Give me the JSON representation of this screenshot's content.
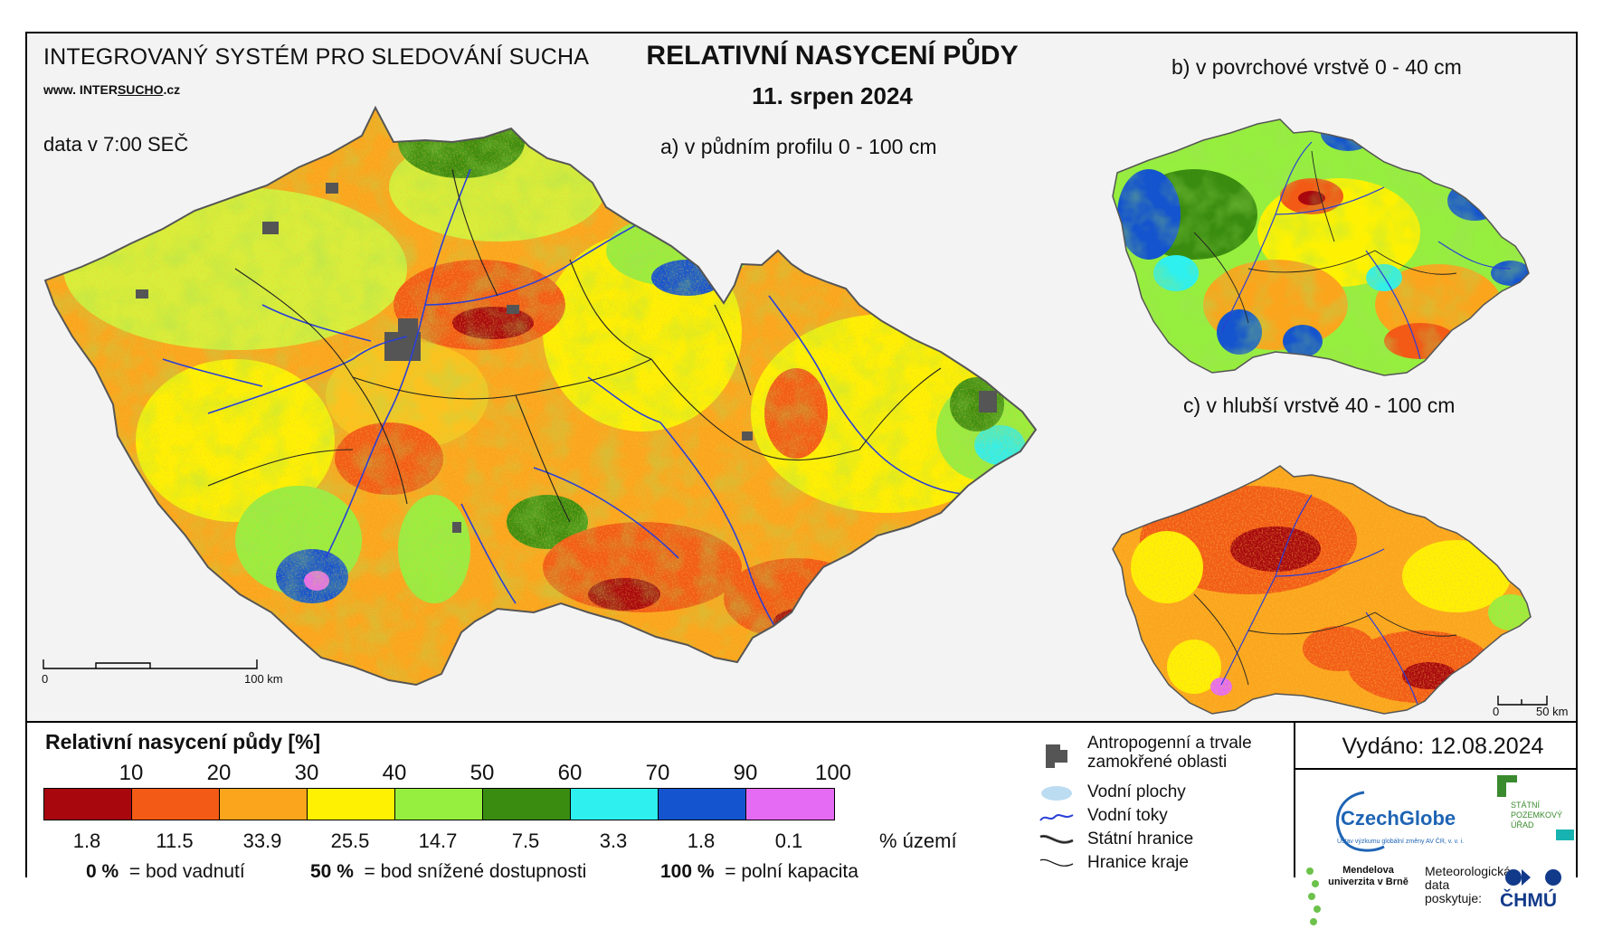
{
  "header": {
    "system_title": "INTEGROVANÝ SYSTÉM PRO SLEDOVÁNÍ SUCHA",
    "website_prefix": "www. INTER",
    "website_underlined": "SUCHO",
    "website_suffix": ".cz",
    "data_time": "data v 7:00 SEČ",
    "title": "RELATIVNÍ NASYCENÍ PŮDY",
    "date": "11. srpen 2024"
  },
  "maps": {
    "a_label": "a) v půdním profilu 0 - 100 cm",
    "b_label": "b) v povrchové vrstvě 0 - 40 cm",
    "c_label": "c) v hlubší vrstvě 40 - 100 cm",
    "scale_main": {
      "zero": "0",
      "end": "100 km"
    },
    "scale_small": {
      "zero": "0",
      "end": "50 km"
    }
  },
  "legend": {
    "title": "Relativní nasycení půdy [%]",
    "ticks": [
      "10",
      "20",
      "30",
      "40",
      "50",
      "60",
      "70",
      "90",
      "100"
    ],
    "colors": [
      "#a8070e",
      "#f25a16",
      "#fba51d",
      "#fef202",
      "#96ef3e",
      "#3a8c10",
      "#2ef0ef",
      "#1454cf",
      "#e56bf5"
    ],
    "percent_area": [
      "1.8",
      "11.5",
      "33.9",
      "25.5",
      "14.7",
      "7.5",
      "3.3",
      "1.8",
      "0.1"
    ],
    "percent_area_unit": "% území",
    "definitions": [
      {
        "value": "0 %",
        "text": "= bod vadnutí"
      },
      {
        "value": "50 %",
        "text": "= bod snížené dostupnosti"
      },
      {
        "value": "100 %",
        "text": "= polní kapacita"
      }
    ],
    "symbols": [
      {
        "icon": "urban-area-icon",
        "label": "Antropogenní a trvale zamokřené oblasti"
      },
      {
        "icon": "water-body-icon",
        "label": "Vodní plochy"
      },
      {
        "icon": "river-icon",
        "label": "Vodní toky"
      },
      {
        "icon": "state-border-icon",
        "label": "Státní hranice"
      },
      {
        "icon": "region-border-icon",
        "label": "Hranice kraje"
      }
    ]
  },
  "footer": {
    "issued": "Vydáno: 12.08.2024",
    "czechglobe": "CzechGlobe",
    "czechglobe_sub": "Ústav výzkumu globální změny AV ČR, v. v. i.",
    "spu": "STÁTNÍ POZEMKOVÝ ÚŘAD",
    "mendel": "Mendelova univerzita v Brně",
    "meteo": "Meteorologická data poskytuje:",
    "chmu": "ČHMÚ"
  }
}
